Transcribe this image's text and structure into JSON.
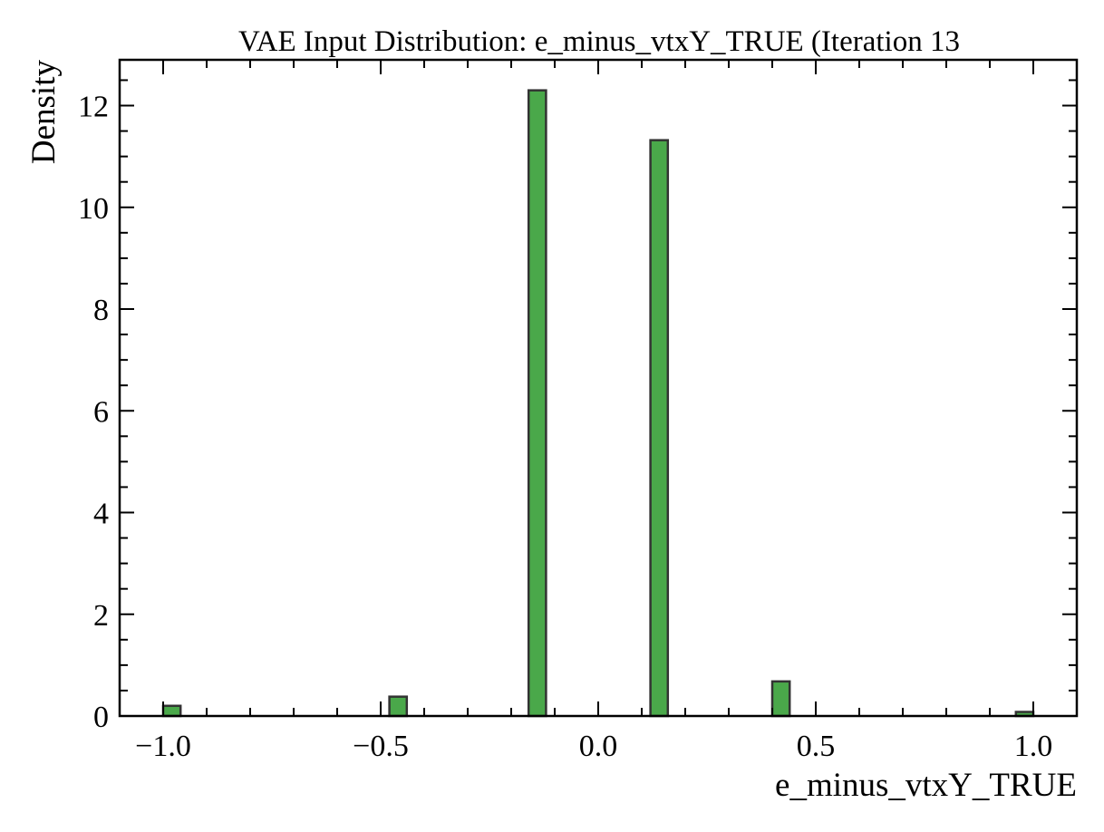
{
  "chart_data": {
    "type": "bar",
    "title": "VAE Input Distribution: e_minus_vtxY_TRUE (Iteration 13",
    "xlabel": "e_minus_vtxY_TRUE",
    "ylabel": "Density",
    "xlim": [
      -1.1,
      1.1
    ],
    "ylim": [
      0,
      12.9
    ],
    "bin_width": 0.04,
    "bar_color": "#4aa84a",
    "edge_color": "#333333",
    "grid": false,
    "x_ticks": [
      {
        "value": -1.0,
        "label": "−1.0"
      },
      {
        "value": -0.5,
        "label": "−0.5"
      },
      {
        "value": 0.0,
        "label": "0.0"
      },
      {
        "value": 0.5,
        "label": "0.5"
      },
      {
        "value": 1.0,
        "label": "1.0"
      }
    ],
    "y_ticks": [
      {
        "value": 0,
        "label": "0"
      },
      {
        "value": 2,
        "label": "2"
      },
      {
        "value": 4,
        "label": "4"
      },
      {
        "value": 6,
        "label": "6"
      },
      {
        "value": 8,
        "label": "8"
      },
      {
        "value": 10,
        "label": "10"
      },
      {
        "value": 12,
        "label": "12"
      }
    ],
    "x_minor_step": 0.1,
    "y_minor_step": 0.5,
    "bins": [
      {
        "x": -0.98,
        "value": 0.2
      },
      {
        "x": -0.46,
        "value": 0.38
      },
      {
        "x": -0.14,
        "value": 12.3
      },
      {
        "x": 0.14,
        "value": 11.32
      },
      {
        "x": 0.42,
        "value": 0.68
      },
      {
        "x": 0.98,
        "value": 0.08
      }
    ]
  }
}
